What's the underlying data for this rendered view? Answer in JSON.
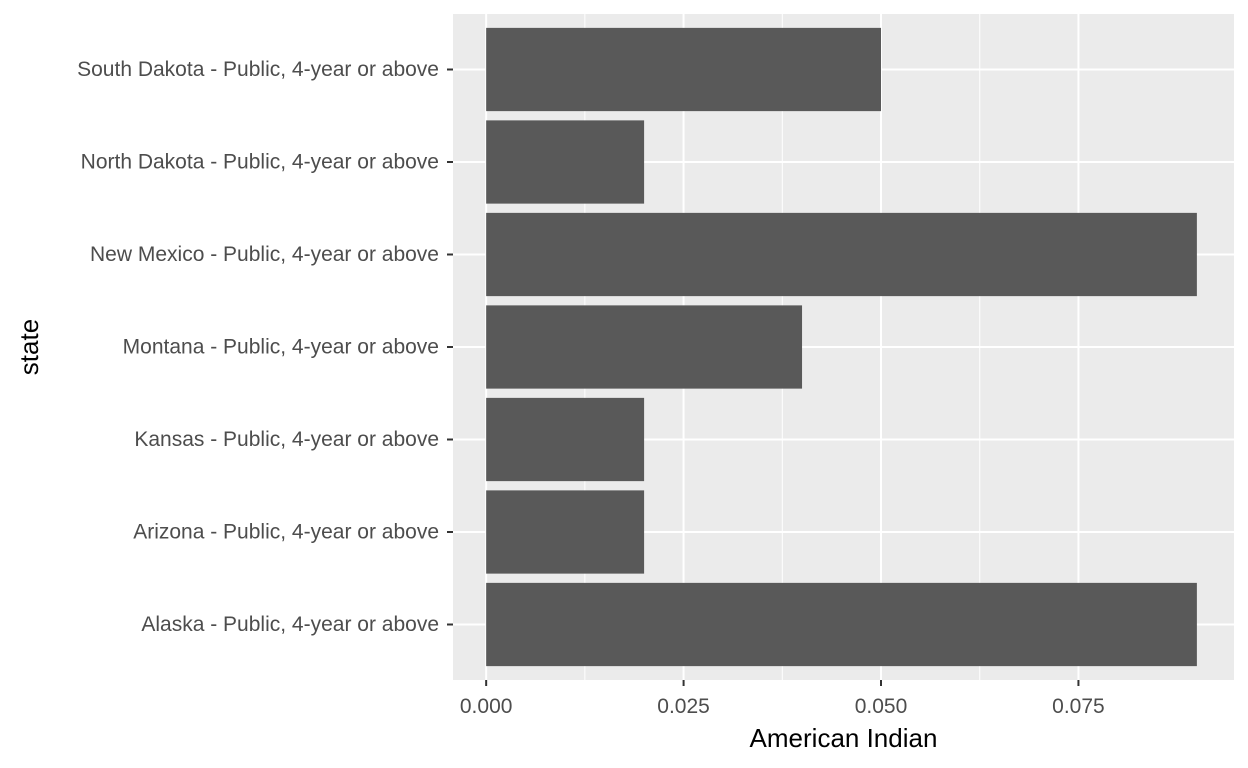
{
  "chart_data": {
    "type": "bar",
    "orientation": "horizontal",
    "xlabel": "American Indian",
    "ylabel": "state",
    "xlim": [
      -0.0042,
      0.0947
    ],
    "x_ticks": [
      0.0,
      0.025,
      0.05,
      0.075
    ],
    "x_tick_labels": [
      "0.000",
      "0.025",
      "0.050",
      "0.075"
    ],
    "categories": [
      "Alaska - Public, 4-year or above",
      "Arizona - Public, 4-year or above",
      "Kansas - Public, 4-year or above",
      "Montana - Public, 4-year or above",
      "New Mexico - Public, 4-year or above",
      "North Dakota - Public, 4-year or above",
      "South Dakota - Public, 4-year or above"
    ],
    "values": [
      0.09,
      0.02,
      0.02,
      0.04,
      0.09,
      0.02,
      0.05
    ],
    "grid": true,
    "colors": {
      "bar": "#595959",
      "panel_background": "#ebebeb",
      "grid_major": "#ffffff",
      "tick_text": "#4d4d4d",
      "tick_mark": "#333333",
      "title_text": "#000000"
    }
  }
}
